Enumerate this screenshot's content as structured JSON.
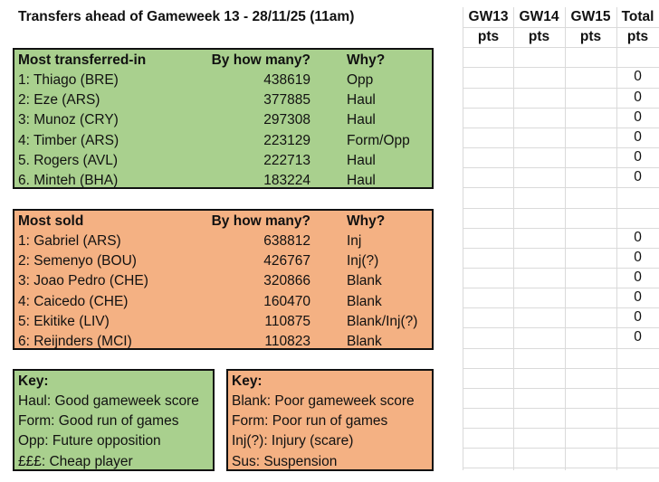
{
  "title": "Transfers ahead of Gameweek 13 - 28/11/25 (11am)",
  "colors": {
    "green": "#a9d08e",
    "orange": "#f4b183"
  },
  "points_headers": [
    {
      "top": "GW13",
      "bottom": "pts"
    },
    {
      "top": "GW14",
      "bottom": "pts"
    },
    {
      "top": "GW15",
      "bottom": "pts"
    },
    {
      "top": "Total",
      "bottom": "pts"
    }
  ],
  "transferred_in": {
    "header": {
      "name": "Most transferred-in",
      "count": "By how many?",
      "why": "Why?"
    },
    "rows": [
      {
        "name": "1: Thiago (BRE)",
        "count": "438619",
        "why": "Opp",
        "total": "0"
      },
      {
        "name": "2: Eze (ARS)",
        "count": "377885",
        "why": "Haul",
        "total": "0"
      },
      {
        "name": "3: Munoz (CRY)",
        "count": "297308",
        "why": "Haul",
        "total": "0"
      },
      {
        "name": "4: Timber (ARS)",
        "count": "223129",
        "why": "Form/Opp",
        "total": "0"
      },
      {
        "name": "5. Rogers (AVL)",
        "count": "222713",
        "why": "Haul",
        "total": "0"
      },
      {
        "name": "6. Minteh (BHA)",
        "count": "183224",
        "why": "Haul",
        "total": "0"
      }
    ]
  },
  "sold": {
    "header": {
      "name": "Most sold",
      "count": "By how many?",
      "why": "Why?"
    },
    "rows": [
      {
        "name": "1: Gabriel (ARS)",
        "count": "638812",
        "why": "Inj",
        "total": "0"
      },
      {
        "name": "2: Semenyo (BOU)",
        "count": "426767",
        "why": "Inj(?)",
        "total": "0"
      },
      {
        "name": "3: Joao Pedro (CHE)",
        "count": "320866",
        "why": "Blank",
        "total": "0"
      },
      {
        "name": "4: Caicedo (CHE)",
        "count": "160470",
        "why": "Blank",
        "total": "0"
      },
      {
        "name": "5: Ekitike (LIV)",
        "count": "110875",
        "why": "Blank/Inj(?)",
        "total": "0"
      },
      {
        "name": "6: Reijnders (MCI)",
        "count": "110823",
        "why": "Blank",
        "total": "0"
      }
    ]
  },
  "key_in": {
    "title": "Key:",
    "items": [
      "Haul: Good gameweek score",
      "Form: Good run of games",
      "Opp: Future opposition",
      "£££: Cheap player"
    ]
  },
  "key_sold": {
    "title": "Key:",
    "items": [
      "Blank: Poor gameweek score",
      "Form: Poor run of games",
      "Inj(?): Injury (scare)",
      "Sus: Suspension"
    ]
  }
}
